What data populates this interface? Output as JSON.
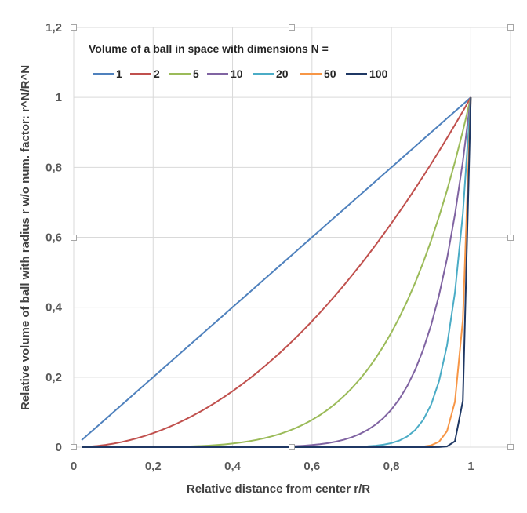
{
  "chart_data": {
    "type": "line",
    "title": "",
    "legend_title": "Volume of a ball in space with dimensions N =",
    "legend_position": "top-left",
    "xlabel": "Relative distance from center r/R",
    "ylabel": "Relative volume of  ball with radius r w/o num. factor: r^N/R^N",
    "xlim": [
      0,
      1.1
    ],
    "ylim": [
      0,
      1.2
    ],
    "x_ticks": [
      "0",
      "0,2",
      "0,4",
      "0,6",
      "0,8",
      "1"
    ],
    "y_ticks": [
      "0",
      "0,2",
      "0,4",
      "0,6",
      "0,8",
      "1",
      "1,2"
    ],
    "grid": true,
    "x": [
      0.02,
      0.04,
      0.06,
      0.08,
      0.1,
      0.12,
      0.14,
      0.16,
      0.18,
      0.2,
      0.22,
      0.24,
      0.26,
      0.28,
      0.3,
      0.32,
      0.34,
      0.36,
      0.38,
      0.4,
      0.42,
      0.44,
      0.46,
      0.48,
      0.5,
      0.52,
      0.54,
      0.56,
      0.58,
      0.6,
      0.62,
      0.64,
      0.66,
      0.68,
      0.7,
      0.72,
      0.74,
      0.76,
      0.78,
      0.8,
      0.82,
      0.84,
      0.86,
      0.88,
      0.9,
      0.92,
      0.94,
      0.96,
      0.98,
      1.0
    ],
    "series": [
      {
        "name": "1",
        "color": "#4f81bd",
        "exponent": 1
      },
      {
        "name": "2",
        "color": "#c0504d",
        "exponent": 2
      },
      {
        "name": "5",
        "color": "#9bbb59",
        "exponent": 5
      },
      {
        "name": "10",
        "color": "#8064a2",
        "exponent": 10
      },
      {
        "name": "20",
        "color": "#4bacc6",
        "exponent": 20
      },
      {
        "name": "50",
        "color": "#f79646",
        "exponent": 50
      },
      {
        "name": "100",
        "color": "#1f3864",
        "exponent": 100
      }
    ]
  }
}
